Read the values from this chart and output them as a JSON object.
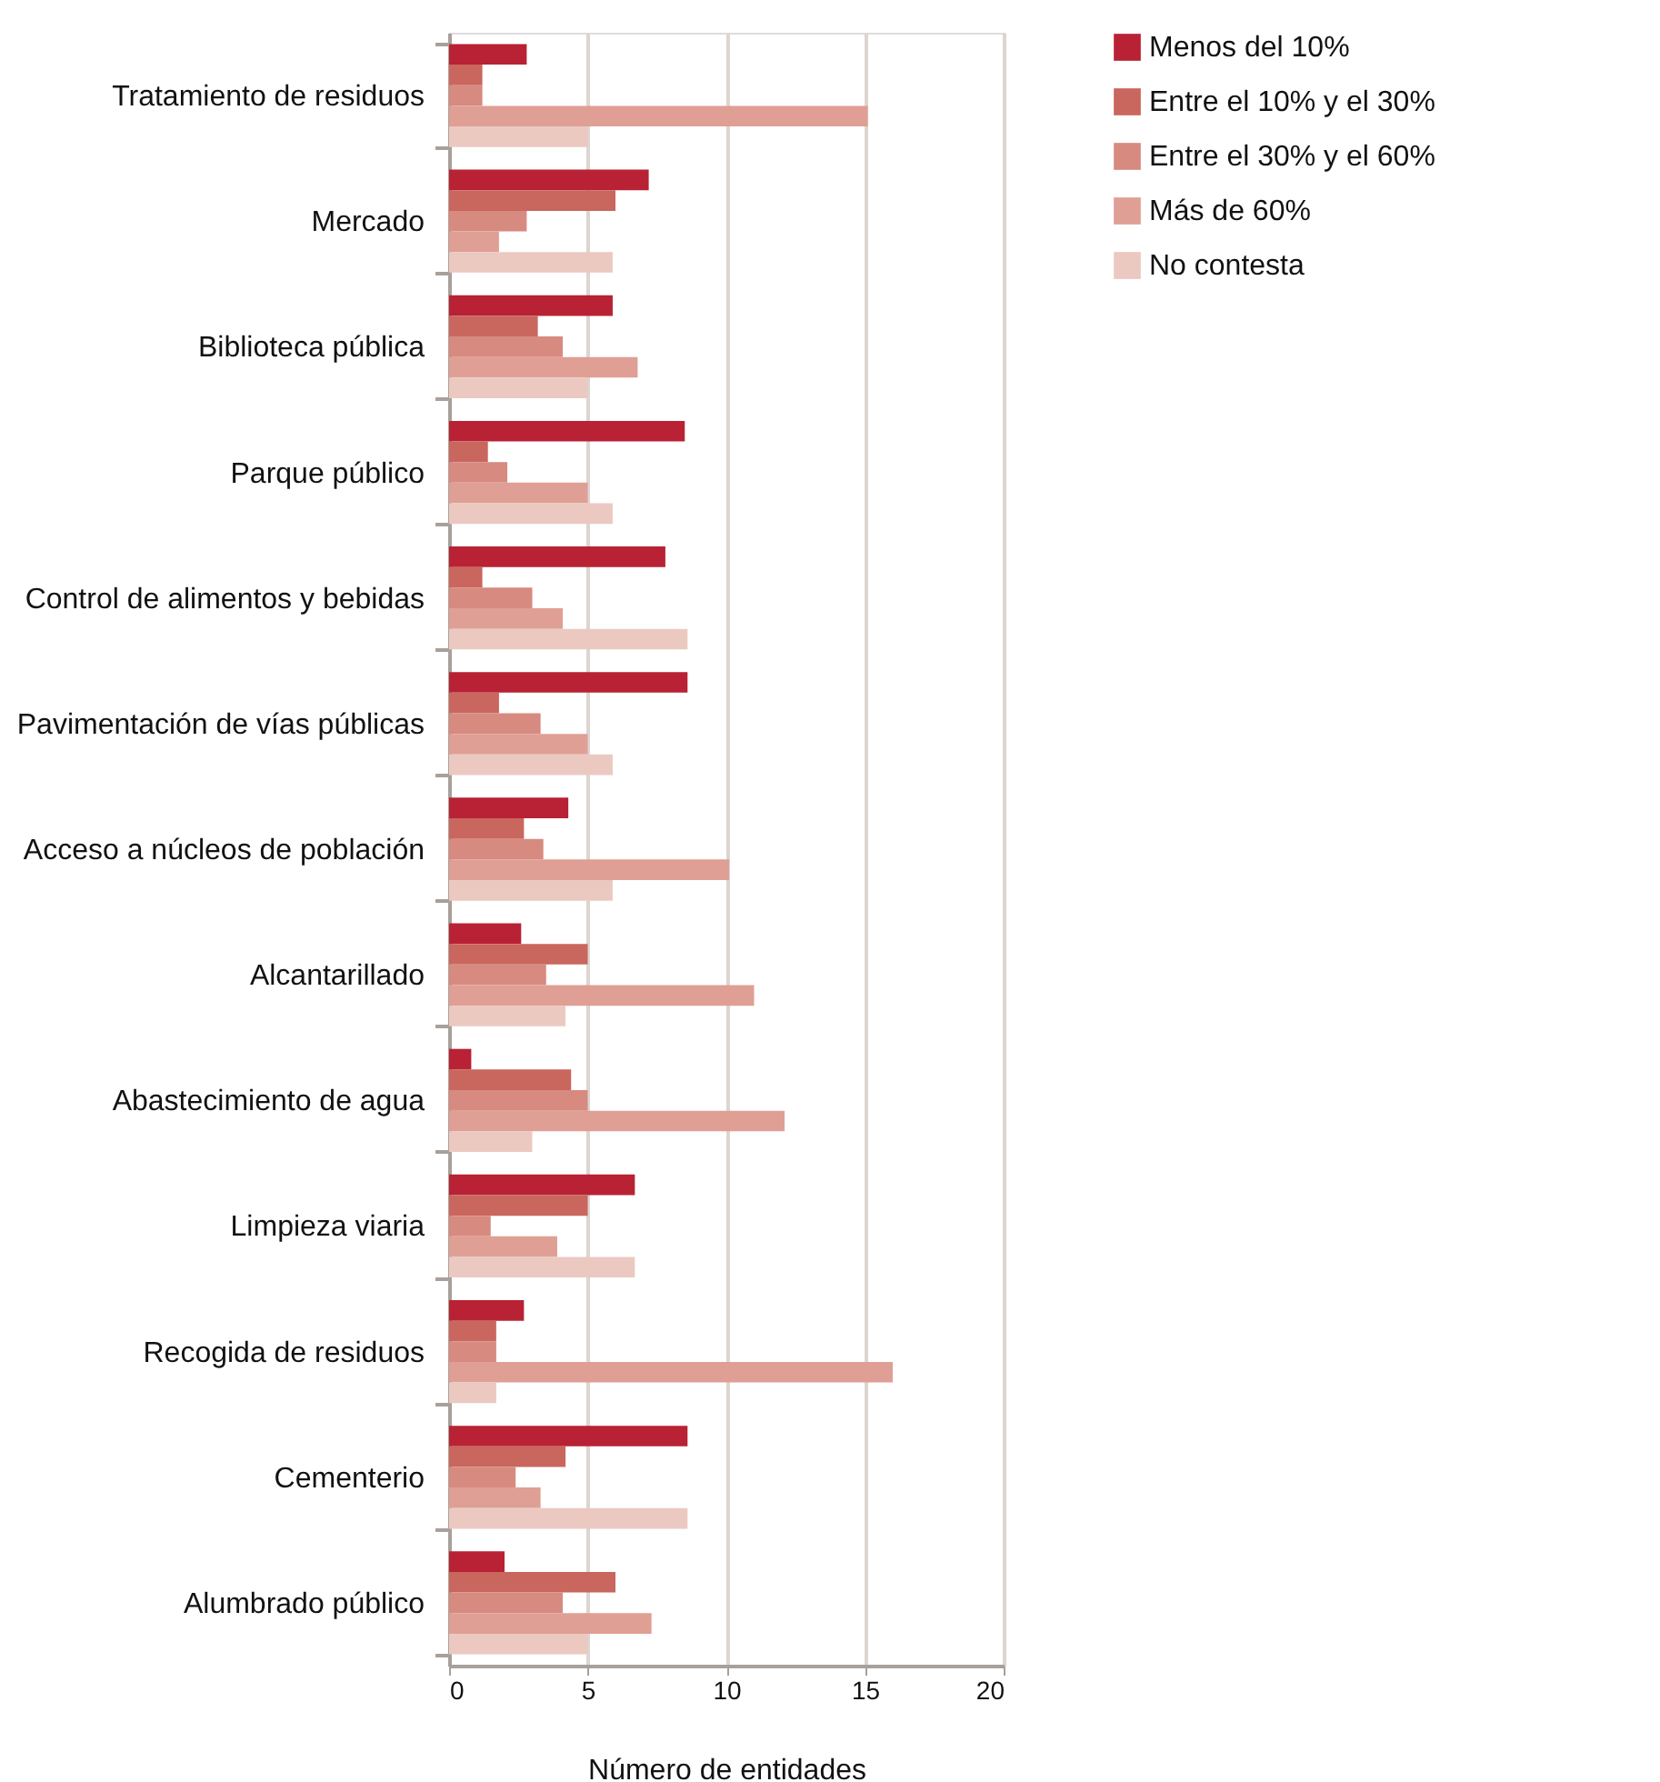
{
  "chart_data": {
    "type": "bar",
    "orientation": "horizontal",
    "xlabel": "Número de entidades",
    "categories": [
      "Tratamiento de residuos",
      "Mercado",
      "Biblioteca pública",
      "Parque público",
      "Control de alimentos y bebidas",
      "Pavimentación de vías públicas",
      "Acceso a núcleos de población",
      "Alcantarillado",
      "Abastecimiento de agua",
      "Limpieza viaria",
      "Recogida de residuos",
      "Cementerio",
      "Alumbrado público"
    ],
    "series": [
      {
        "name": "Menos del 10%",
        "color": "#b82234",
        "values": [
          2.8,
          7.2,
          5.9,
          8.5,
          7.8,
          8.6,
          4.3,
          2.6,
          0.8,
          6.7,
          2.7,
          8.6,
          2.0
        ]
      },
      {
        "name": "Entre el 10% y el 30%",
        "color": "#c9665e",
        "values": [
          1.2,
          6.0,
          3.2,
          1.4,
          1.2,
          1.8,
          2.7,
          5.0,
          4.4,
          5.0,
          1.7,
          4.2,
          6.0
        ]
      },
      {
        "name": "Entre el 30% y el 60%",
        "color": "#d78a80",
        "values": [
          1.2,
          2.8,
          4.1,
          2.1,
          3.0,
          3.3,
          3.4,
          3.5,
          5.0,
          1.5,
          1.7,
          2.4,
          4.1
        ]
      },
      {
        "name": "Más de 60%",
        "color": "#df9f95",
        "values": [
          15.1,
          1.8,
          6.8,
          5.0,
          4.1,
          5.0,
          10.1,
          11.0,
          12.1,
          3.9,
          16.0,
          3.3,
          7.3
        ]
      },
      {
        "name": "No contesta",
        "color": "#ebc9c1",
        "values": [
          5.0,
          5.9,
          5.0,
          5.9,
          8.6,
          5.9,
          5.9,
          4.2,
          3.0,
          6.7,
          1.7,
          8.6,
          5.0
        ]
      }
    ],
    "xlim": [
      0,
      20
    ],
    "xticks": [
      0,
      5,
      10,
      15,
      20
    ],
    "grid": "x",
    "legend": "right"
  }
}
